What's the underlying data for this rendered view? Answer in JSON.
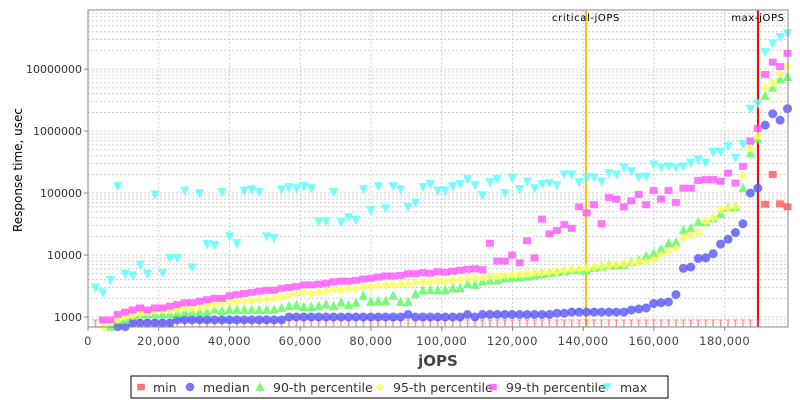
{
  "chart_data": {
    "type": "scatter",
    "xlabel": "jOPS",
    "ylabel": "Response time, usec",
    "x_scale": "linear",
    "y_scale": "log",
    "xlim": [
      0,
      197900
    ],
    "ylim": [
      690,
      90000000
    ],
    "grid": true,
    "legend_position": "bottom",
    "x_ticks": [
      "0",
      "20,000",
      "40,000",
      "60,000",
      "80,000",
      "100,000",
      "120,000",
      "140,000",
      "160,000",
      "180,000"
    ],
    "x_tick_values": [
      0,
      20000,
      40000,
      60000,
      80000,
      100000,
      120000,
      140000,
      160000,
      180000
    ],
    "y_ticks": [
      "1000",
      "10000",
      "100000",
      "1000000",
      "10000000"
    ],
    "y_tick_values": [
      1000,
      10000,
      100000,
      1000000,
      10000000
    ],
    "x_step_jops": 2104,
    "vertical_lines": [
      {
        "label": "critical-jOPS",
        "x": 140800,
        "color": "#ffc000"
      },
      {
        "label": "max-jOPS",
        "x": 189400,
        "color": "#ff0000"
      }
    ],
    "series": [
      {
        "name": "min",
        "color": "#ff5555",
        "marker": "square",
        "values": [
          600,
          600,
          600,
          600,
          600,
          600,
          600,
          600,
          600,
          600,
          600,
          600,
          600,
          600,
          600,
          600,
          600,
          600,
          600,
          600,
          600,
          600,
          600,
          600,
          600,
          600,
          600,
          600,
          600,
          600,
          600,
          600,
          600,
          600,
          600,
          600,
          600,
          600,
          600,
          600,
          600,
          600,
          600,
          600,
          600,
          600,
          600,
          600,
          600,
          600,
          600,
          600,
          600,
          600,
          600,
          600,
          600,
          600,
          600,
          600,
          600,
          600,
          600,
          600,
          600,
          600,
          600,
          600,
          600,
          600,
          600,
          600,
          600,
          600,
          600,
          600,
          600,
          600,
          600,
          600,
          600,
          600,
          600,
          600,
          600,
          600,
          600,
          600,
          600,
          600,
          66000,
          200000,
          67000,
          60000
        ]
      },
      {
        "name": "median",
        "color": "#5555ff",
        "marker": "circle",
        "values": [
          null,
          null,
          null,
          700,
          700,
          800,
          800,
          800,
          800,
          800,
          800,
          900,
          900,
          900,
          900,
          900,
          900,
          900,
          900,
          900,
          900,
          900,
          900,
          900,
          900,
          900,
          1000,
          1000,
          1000,
          1000,
          1000,
          1000,
          1000,
          1000,
          1000,
          1000,
          1000,
          1000,
          1000,
          1000,
          1000,
          1000,
          1100,
          1000,
          1000,
          1000,
          1000,
          1000,
          1000,
          1000,
          1100,
          1000,
          1100,
          1100,
          1100,
          1100,
          1100,
          1100,
          1100,
          1100,
          1100,
          1100,
          1150,
          1150,
          1200,
          1200,
          1200,
          1200,
          1200,
          1200,
          1200,
          1200,
          1300,
          1350,
          1400,
          1650,
          1700,
          1750,
          2300,
          6100,
          6400,
          8800,
          9000,
          10500,
          15000,
          18000,
          23000,
          32000,
          100000,
          120000,
          1250000,
          1900000,
          1500000,
          2300000
        ]
      },
      {
        "name": "90-th percentile",
        "color": "#55ff55",
        "marker": "triangle-up",
        "values": [
          null,
          null,
          700,
          900,
          900,
          1050,
          1100,
          1100,
          1100,
          1100,
          1100,
          1150,
          1200,
          1200,
          1200,
          1200,
          1300,
          1250,
          1300,
          1300,
          1300,
          1300,
          1300,
          1300,
          1300,
          1400,
          1500,
          1550,
          1450,
          1450,
          1500,
          1600,
          1500,
          1700,
          1550,
          1700,
          2200,
          1750,
          1800,
          1800,
          2200,
          1750,
          1750,
          2350,
          2700,
          2700,
          2700,
          2700,
          2900,
          2900,
          3400,
          3300,
          3700,
          3900,
          3900,
          4200,
          4300,
          4400,
          4500,
          4700,
          4900,
          5100,
          5300,
          5500,
          5700,
          5700,
          5600,
          6200,
          6500,
          6900,
          6900,
          7000,
          7700,
          8300,
          9600,
          10700,
          12500,
          15500,
          16000,
          25000,
          27000,
          34000,
          34000,
          39000,
          46000,
          59000,
          59000,
          120000,
          440000,
          740000,
          3700000,
          5000000,
          6800000,
          7500000
        ]
      },
      {
        "name": "95-th percentile",
        "color": "#ffff55",
        "marker": "diamond",
        "values": [
          null,
          700,
          800,
          900,
          1000,
          1050,
          1150,
          1200,
          1250,
          1300,
          1300,
          1350,
          1400,
          1350,
          1450,
          1500,
          1600,
          1700,
          1750,
          1750,
          1800,
          1800,
          1900,
          1900,
          2000,
          2100,
          2300,
          2400,
          2500,
          2400,
          2500,
          2600,
          2800,
          2700,
          2900,
          2900,
          3100,
          3100,
          3200,
          3300,
          3300,
          3400,
          3400,
          3600,
          3600,
          3700,
          3800,
          3800,
          3900,
          4000,
          4200,
          4300,
          4400,
          4500,
          4600,
          4700,
          4800,
          4900,
          5000,
          5100,
          5200,
          5300,
          5400,
          5600,
          5800,
          6000,
          6100,
          6300,
          6600,
          6800,
          7000,
          7200,
          7500,
          7700,
          7800,
          8500,
          10000,
          11500,
          13000,
          19000,
          21000,
          23000,
          35000,
          40000,
          55000,
          57000,
          60000,
          190000,
          530000,
          830000,
          5000000,
          6000000,
          8500000,
          11000000
        ]
      },
      {
        "name": "99-th percentile",
        "color": "#ff55ff",
        "marker": "square",
        "values": [
          null,
          900,
          900,
          1100,
          1200,
          1300,
          1400,
          1300,
          1400,
          1400,
          1500,
          1600,
          1700,
          1700,
          1800,
          1900,
          2000,
          2000,
          2200,
          2300,
          2400,
          2500,
          2600,
          2700,
          2700,
          2900,
          3000,
          3100,
          3300,
          3300,
          3400,
          3500,
          3700,
          3800,
          3800,
          3900,
          4100,
          4200,
          4400,
          4600,
          4600,
          4700,
          5000,
          5000,
          5200,
          5100,
          5400,
          5300,
          5500,
          5700,
          5900,
          6000,
          5800,
          15500,
          8000,
          8000,
          10000,
          7500,
          17000,
          9000,
          38000,
          22000,
          25000,
          31000,
          27000,
          60000,
          48000,
          65000,
          32000,
          85000,
          80000,
          60000,
          75000,
          95000,
          65000,
          110000,
          80000,
          110000,
          70000,
          120000,
          120000,
          160000,
          165000,
          165000,
          155000,
          210000,
          145000,
          270000,
          690000,
          1100000,
          8200000,
          13000000,
          11000000,
          18000000
        ]
      },
      {
        "name": "max",
        "color": "#55ffff",
        "marker": "triangle-down",
        "values": [
          3000,
          2500,
          4000,
          130000,
          5000,
          4700,
          7000,
          5000,
          95000,
          5200,
          9000,
          9000,
          110000,
          6300,
          100000,
          15000,
          14500,
          105000,
          20000,
          15500,
          110000,
          115000,
          105000,
          20000,
          19000,
          115000,
          125000,
          120000,
          130000,
          120000,
          35000,
          35000,
          104000,
          34000,
          41000,
          37000,
          116000,
          53000,
          130000,
          57000,
          130000,
          116000,
          60000,
          70000,
          125000,
          140000,
          110000,
          110000,
          130000,
          140000,
          168000,
          135000,
          93000,
          150000,
          168000,
          100000,
          175000,
          116000,
          155000,
          120000,
          140000,
          145000,
          135000,
          200000,
          200000,
          150000,
          180000,
          180000,
          155000,
          210000,
          200000,
          260000,
          225000,
          180000,
          185000,
          290000,
          260000,
          270000,
          260000,
          270000,
          310000,
          350000,
          310000,
          460000,
          470000,
          570000,
          370000,
          620000,
          2300000,
          2800000,
          19000000,
          26000000,
          33000000,
          38000000
        ]
      }
    ]
  }
}
